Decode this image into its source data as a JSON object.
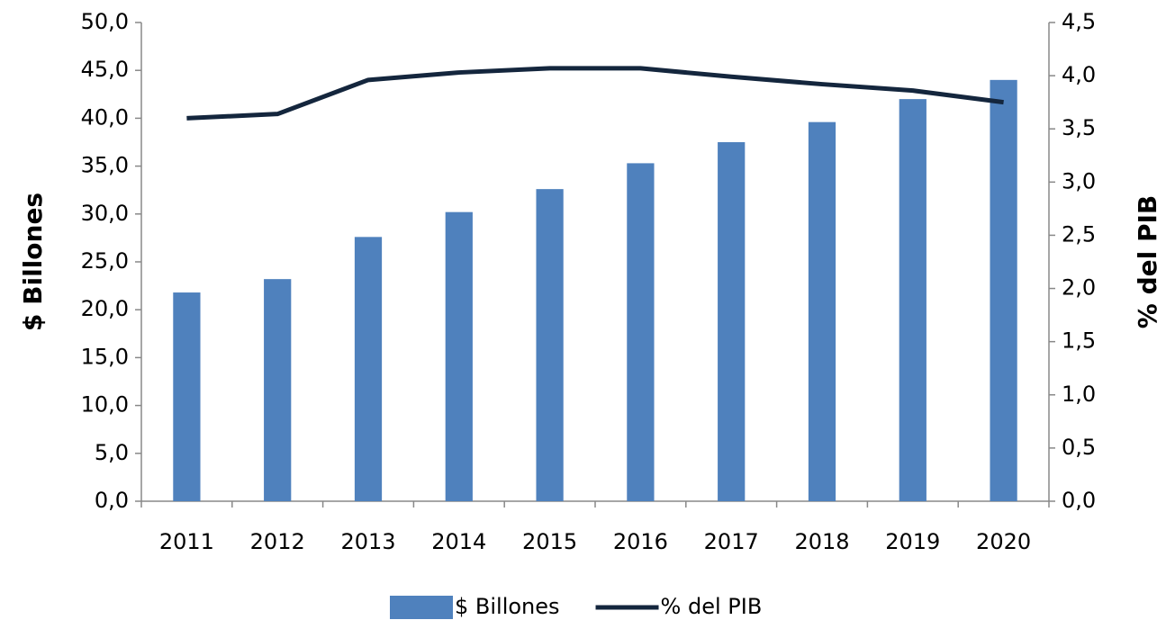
{
  "chart_data": {
    "type": "bar",
    "categories": [
      "2011",
      "2012",
      "2013",
      "2014",
      "2015",
      "2016",
      "2017",
      "2018",
      "2019",
      "2020"
    ],
    "series": [
      {
        "name": "$ Billones",
        "type": "bar",
        "color": "#4f81bd",
        "values": [
          21.8,
          23.2,
          27.6,
          30.2,
          32.6,
          35.3,
          37.5,
          39.6,
          42.0,
          44.0
        ]
      },
      {
        "name": "% del PIB",
        "type": "line",
        "axis": "y2",
        "color": "#14263d",
        "values": [
          3.6,
          3.64,
          3.96,
          4.03,
          4.07,
          4.07,
          3.99,
          3.92,
          3.86,
          3.75
        ]
      }
    ],
    "ylabel": "$ Billones",
    "y2label": "% del PIB",
    "ylim": [
      0,
      50
    ],
    "yticks": [
      {
        "value": 0,
        "label": "0,0"
      },
      {
        "value": 5,
        "label": "5,0"
      },
      {
        "value": 10,
        "label": "10,0"
      },
      {
        "value": 15,
        "label": "15,0"
      },
      {
        "value": 20,
        "label": "20,0"
      },
      {
        "value": 25,
        "label": "25,0"
      },
      {
        "value": 30,
        "label": "30,0"
      },
      {
        "value": 35,
        "label": "35,0"
      },
      {
        "value": 40,
        "label": "40,0"
      },
      {
        "value": 45,
        "label": "45,0"
      },
      {
        "value": 50,
        "label": "50,0"
      }
    ],
    "y2lim": [
      0,
      4.5
    ],
    "y2ticks": [
      {
        "value": 0,
        "label": "0,0"
      },
      {
        "value": 0.5,
        "label": "0,5"
      },
      {
        "value": 1,
        "label": "1,0"
      },
      {
        "value": 1.5,
        "label": "1,5"
      },
      {
        "value": 2,
        "label": "2,0"
      },
      {
        "value": 2.5,
        "label": "2,5"
      },
      {
        "value": 3,
        "label": "3,0"
      },
      {
        "value": 3.5,
        "label": "3,5"
      },
      {
        "value": 4,
        "label": "4,0"
      },
      {
        "value": 4.5,
        "label": "4,5"
      }
    ],
    "grid": false,
    "legend": "bottom"
  }
}
